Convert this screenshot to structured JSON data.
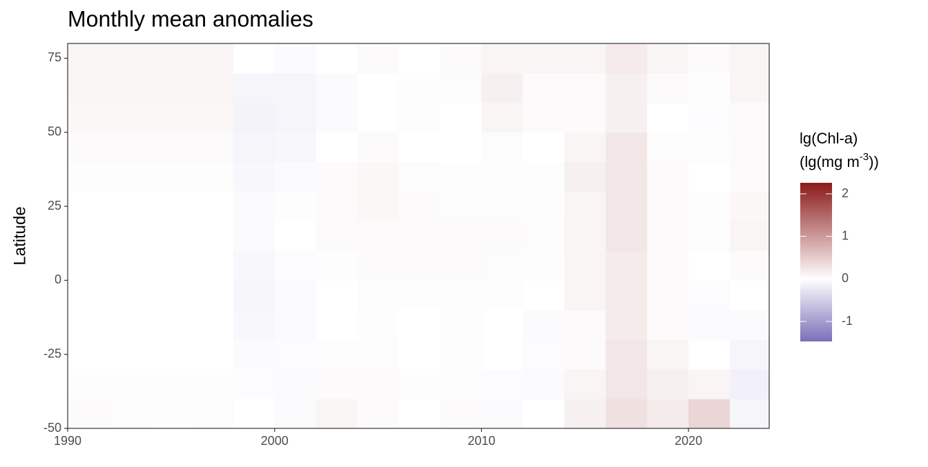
{
  "chart_data": {
    "type": "heatmap",
    "title": "Monthly mean anomalies",
    "y_label": "Latitude",
    "x": [
      1990,
      1992,
      1994,
      1996,
      1998,
      2000,
      2002,
      2004,
      2006,
      2008,
      2010,
      2012,
      2014,
      2016,
      2018,
      2020,
      2022
    ],
    "x_bin_width": 2,
    "y": [
      -45,
      -35,
      -25,
      -15,
      -5,
      5,
      15,
      25,
      35,
      45,
      55,
      65,
      75
    ],
    "y_bin_width": 10,
    "values": [
      [
        0.05,
        0.03,
        0.02,
        0.03,
        0.0,
        -0.05,
        0.1,
        0.05,
        0.0,
        0.05,
        -0.05,
        0.0,
        0.15,
        0.3,
        0.2,
        0.4,
        -0.1
      ],
      [
        0.02,
        0.02,
        0.02,
        0.02,
        -0.03,
        -0.05,
        0.05,
        0.05,
        -0.02,
        0.03,
        -0.03,
        -0.05,
        0.1,
        0.25,
        0.15,
        0.1,
        -0.15
      ],
      [
        0.0,
        0.0,
        0.0,
        0.0,
        -0.05,
        -0.03,
        0.02,
        0.03,
        0.0,
        0.02,
        0.0,
        -0.03,
        0.05,
        0.25,
        0.1,
        0.0,
        -0.1
      ],
      [
        0.0,
        0.0,
        0.0,
        0.0,
        -0.08,
        -0.05,
        0.0,
        0.02,
        0.0,
        0.02,
        0.0,
        -0.05,
        0.05,
        0.2,
        0.05,
        -0.05,
        -0.05
      ],
      [
        0.0,
        0.0,
        0.0,
        0.0,
        -0.1,
        -0.05,
        0.0,
        0.03,
        0.02,
        0.03,
        0.02,
        0.0,
        0.1,
        0.2,
        0.05,
        -0.03,
        0.0
      ],
      [
        0.0,
        0.0,
        0.0,
        0.0,
        -0.08,
        -0.03,
        0.02,
        0.05,
        0.05,
        0.05,
        0.03,
        0.02,
        0.1,
        0.2,
        0.05,
        0.0,
        0.05
      ],
      [
        0.0,
        0.0,
        0.0,
        0.0,
        -0.05,
        0.0,
        0.05,
        0.05,
        0.05,
        0.05,
        0.05,
        0.03,
        0.1,
        0.25,
        0.05,
        0.03,
        0.1
      ],
      [
        0.0,
        0.0,
        0.0,
        0.0,
        -0.05,
        -0.02,
        0.05,
        0.08,
        0.05,
        0.03,
        0.03,
        0.02,
        0.1,
        0.25,
        0.05,
        0.02,
        0.08
      ],
      [
        0.02,
        0.02,
        0.02,
        0.02,
        -0.08,
        -0.05,
        0.05,
        0.08,
        0.03,
        0.02,
        0.02,
        0.02,
        0.15,
        0.25,
        0.05,
        0.0,
        0.05
      ],
      [
        0.05,
        0.05,
        0.05,
        0.05,
        -0.1,
        -0.08,
        0.0,
        0.05,
        0.0,
        0.0,
        0.03,
        0.0,
        0.1,
        0.25,
        0.03,
        -0.02,
        0.05
      ],
      [
        0.08,
        0.08,
        0.08,
        0.08,
        -0.12,
        -0.1,
        -0.05,
        0.0,
        -0.02,
        0.0,
        0.1,
        0.05,
        0.05,
        0.15,
        0.0,
        -0.03,
        0.05
      ],
      [
        0.1,
        0.1,
        0.1,
        0.1,
        -0.1,
        -0.1,
        -0.05,
        0.0,
        -0.02,
        0.03,
        0.15,
        0.05,
        0.05,
        0.15,
        0.05,
        -0.02,
        0.1
      ],
      [
        0.1,
        0.1,
        0.1,
        0.1,
        0.0,
        -0.05,
        0.0,
        0.05,
        0.0,
        0.05,
        0.1,
        0.1,
        0.1,
        0.2,
        0.1,
        0.05,
        0.1
      ]
    ],
    "xlim": [
      1990,
      2023.9
    ],
    "xticks": [
      1990,
      2000,
      2010,
      2020
    ],
    "ylim": [
      -50,
      80
    ],
    "yticks": [
      -50,
      -25,
      0,
      25,
      50,
      75
    ],
    "colors": {
      "low": "#7b6fb8",
      "mid": "#ffffff",
      "high": "#8b1a1a"
    },
    "color_limits": [
      -1.47,
      2.26
    ],
    "legend_ticks": [
      -1,
      0,
      1,
      2
    ],
    "legend_title": {
      "line1": "lg(Chl-a)",
      "line2_pre": "(lg(mg m",
      "line2_sup": "-3",
      "line2_post": "))"
    }
  }
}
